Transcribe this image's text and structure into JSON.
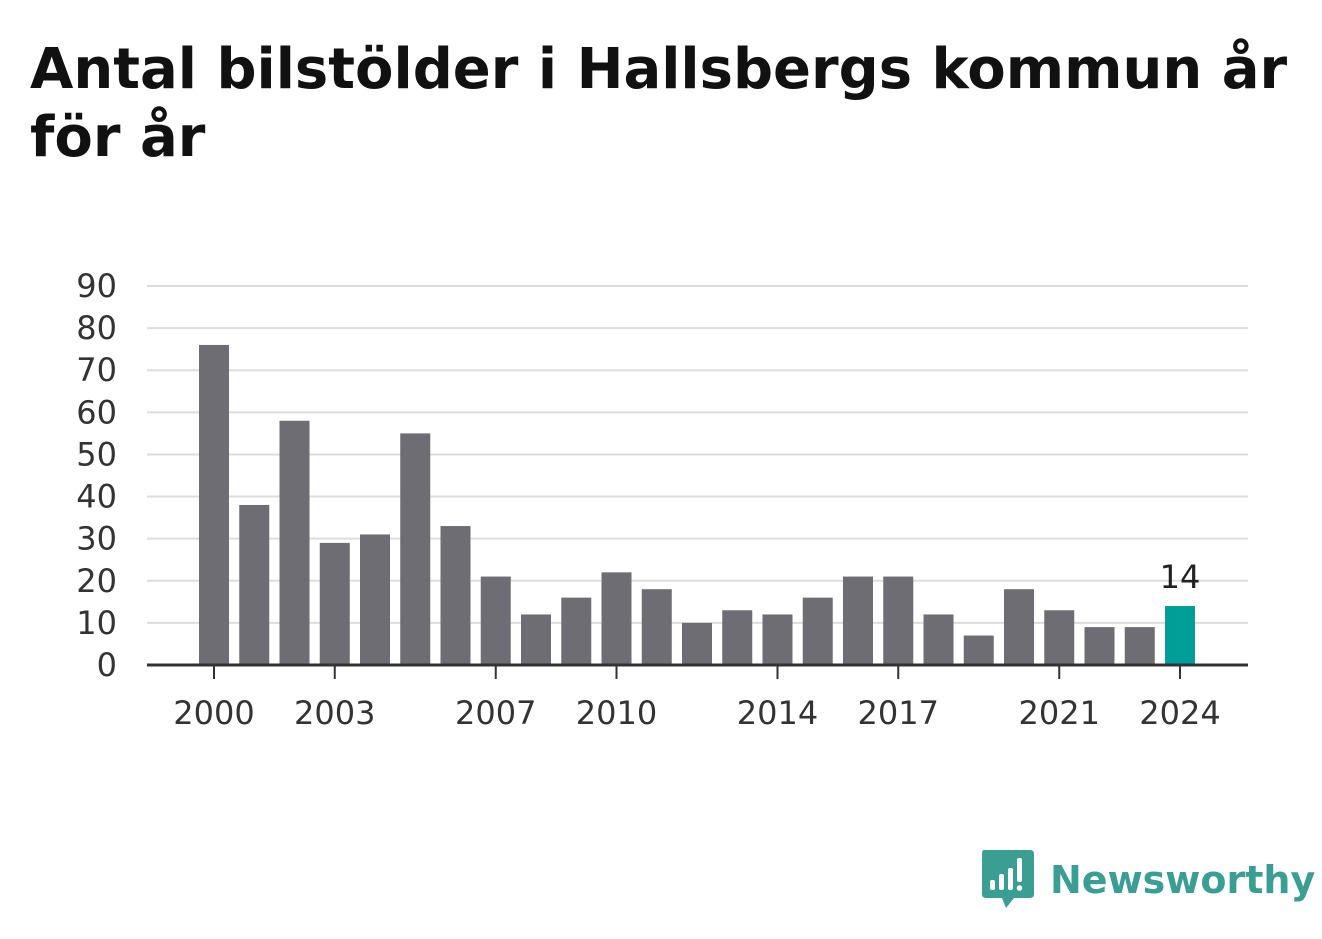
{
  "title": "Antal bilstölder i Hallsbergs kommun år för år",
  "brand": {
    "name": "Newsworthy",
    "icon": "bar-chart-speech-bubble-icon",
    "color": "#3a9e92"
  },
  "colors": {
    "bar": "#6e6d73",
    "highlight": "#009e96",
    "grid": "#dddddd",
    "axis": "#333333"
  },
  "chart_data": {
    "type": "bar",
    "categories": [
      2000,
      2001,
      2002,
      2003,
      2004,
      2005,
      2006,
      2007,
      2008,
      2009,
      2010,
      2011,
      2012,
      2013,
      2014,
      2015,
      2016,
      2017,
      2018,
      2019,
      2020,
      2021,
      2022,
      2023,
      2024
    ],
    "values": [
      76,
      38,
      58,
      29,
      31,
      55,
      33,
      21,
      12,
      16,
      22,
      18,
      10,
      13,
      12,
      16,
      21,
      21,
      12,
      7,
      18,
      13,
      9,
      9,
      14
    ],
    "ylim": [
      0,
      90
    ],
    "yticks": [
      0,
      10,
      20,
      30,
      40,
      50,
      60,
      70,
      80,
      90
    ],
    "xtick_labels": [
      2000,
      2003,
      2007,
      2010,
      2014,
      2017,
      2021,
      2024
    ],
    "highlight_category": 2024,
    "data_labels": [
      {
        "category": 2024,
        "text": "14"
      }
    ],
    "grid": true,
    "xlabel": "",
    "ylabel": ""
  }
}
